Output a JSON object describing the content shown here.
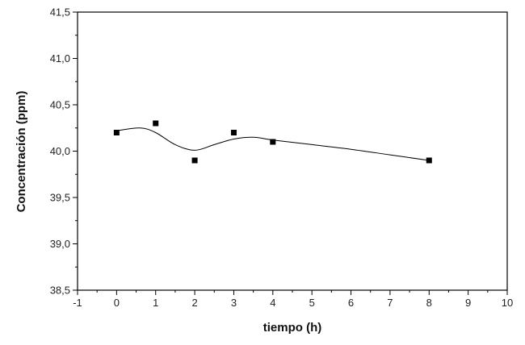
{
  "chart_data": {
    "type": "scatter",
    "title": "",
    "xlabel": "tiempo (h)",
    "ylabel": "Concentración (ppm)",
    "xlim": [
      -1,
      10
    ],
    "ylim": [
      38.5,
      41.5
    ],
    "x_ticks": [
      -1,
      0,
      1,
      2,
      3,
      4,
      5,
      6,
      7,
      8,
      9,
      10
    ],
    "x_tick_labels": [
      "-1",
      "0",
      "1",
      "2",
      "3",
      "4",
      "5",
      "6",
      "7",
      "8",
      "9",
      "10"
    ],
    "y_ticks": [
      38.5,
      39.0,
      39.5,
      40.0,
      40.5,
      41.0,
      41.5
    ],
    "y_tick_labels": [
      "38,5",
      "39,0",
      "39,5",
      "40,0",
      "40,5",
      "41,0",
      "41,5"
    ],
    "grid": false,
    "series": [
      {
        "marker": "square",
        "color": "#000000",
        "points": [
          {
            "x": 0,
            "y": 40.2
          },
          {
            "x": 1,
            "y": 40.3
          },
          {
            "x": 2,
            "y": 39.9
          },
          {
            "x": 3,
            "y": 40.2
          },
          {
            "x": 4,
            "y": 40.1
          },
          {
            "x": 8,
            "y": 39.9
          }
        ]
      }
    ],
    "smooth_curve": {
      "color": "#000000",
      "points": [
        {
          "x": 0,
          "y": 40.22
        },
        {
          "x": 0.6,
          "y": 40.25
        },
        {
          "x": 1,
          "y": 40.2
        },
        {
          "x": 1.5,
          "y": 40.07
        },
        {
          "x": 2,
          "y": 40.01
        },
        {
          "x": 2.5,
          "y": 40.07
        },
        {
          "x": 3,
          "y": 40.13
        },
        {
          "x": 3.5,
          "y": 40.15
        },
        {
          "x": 4,
          "y": 40.12
        },
        {
          "x": 5,
          "y": 40.07
        },
        {
          "x": 6,
          "y": 40.02
        },
        {
          "x": 7,
          "y": 39.96
        },
        {
          "x": 8,
          "y": 39.9
        }
      ]
    }
  }
}
